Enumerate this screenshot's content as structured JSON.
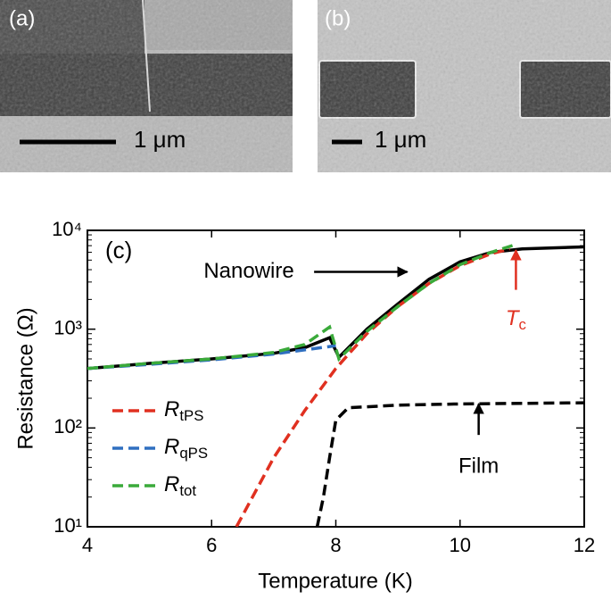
{
  "panels": {
    "a": {
      "label": "(a)",
      "scale": "1 μm"
    },
    "b": {
      "label": "(b)",
      "scale": "1 μm"
    }
  },
  "chart_data": {
    "type": "line",
    "panel_label": "(c)",
    "x_label": "Temperature (K)",
    "y_label": "Resistance (Ω)",
    "log_y": true,
    "xlim": [
      4,
      12
    ],
    "xticks": [
      4,
      6,
      8,
      10,
      12
    ],
    "ylim": [
      10,
      10000
    ],
    "yticks": [
      {
        "value": 10,
        "label": "10¹"
      },
      {
        "value": 100,
        "label": "10²"
      },
      {
        "value": 1000,
        "label": "10³"
      },
      {
        "value": 10000,
        "label": "10⁴"
      }
    ],
    "series": [
      {
        "color": "#000000",
        "dash": false,
        "x": [
          4,
          5,
          6,
          7,
          7.5,
          7.9,
          8.05,
          8.5,
          9,
          9.5,
          10,
          10.5,
          11,
          12
        ],
        "values": [
          400,
          450,
          500,
          570,
          650,
          820,
          520,
          1000,
          1800,
          3200,
          4800,
          6000,
          6500,
          6800
        ]
      },
      {
        "color": "#000000",
        "dash": true,
        "x": [
          7.7,
          7.8,
          7.9,
          8.0,
          8.2,
          9,
          10,
          12
        ],
        "values": [
          10,
          20,
          50,
          120,
          160,
          170,
          175,
          180
        ]
      },
      {
        "name": "RtPS",
        "color": "#e03020",
        "dash": true,
        "x": [
          6.4,
          7,
          7.5,
          8,
          8.5,
          9,
          9.5,
          10,
          10.5,
          10.8
        ],
        "values": [
          10,
          50,
          150,
          400,
          900,
          1700,
          2900,
          4400,
          5800,
          6500
        ]
      },
      {
        "name": "RqPS",
        "color": "#2f6fc0",
        "dash": true,
        "x": [
          4,
          5,
          6,
          7,
          8
        ],
        "values": [
          400,
          440,
          490,
          560,
          680
        ]
      },
      {
        "name": "Rtot",
        "color": "#3aaa3a",
        "dash": true,
        "x": [
          4,
          5,
          6,
          7,
          7.5,
          7.9,
          8.05,
          8.5,
          9,
          9.5,
          10,
          10.5,
          10.9
        ],
        "values": [
          400,
          450,
          500,
          580,
          700,
          1050,
          500,
          950,
          1700,
          2900,
          4500,
          6000,
          7200
        ]
      }
    ],
    "annotations": [
      {
        "text": "Nanowire",
        "color": "#000000",
        "x": 6.6,
        "y": 3800,
        "arrow_from": [
          7.65,
          3800
        ],
        "arrow_to": [
          9.15,
          3800
        ]
      },
      {
        "text": "Tc",
        "color": "#e03020",
        "x": 10.9,
        "y": 1250,
        "arrow_from": [
          10.9,
          2500
        ],
        "arrow_to": [
          10.9,
          6300
        ]
      },
      {
        "text": "Film",
        "color": "#000000",
        "x": 10.3,
        "y": 40,
        "arrow_from": [
          10.3,
          85
        ],
        "arrow_to": [
          10.3,
          175
        ]
      }
    ]
  }
}
